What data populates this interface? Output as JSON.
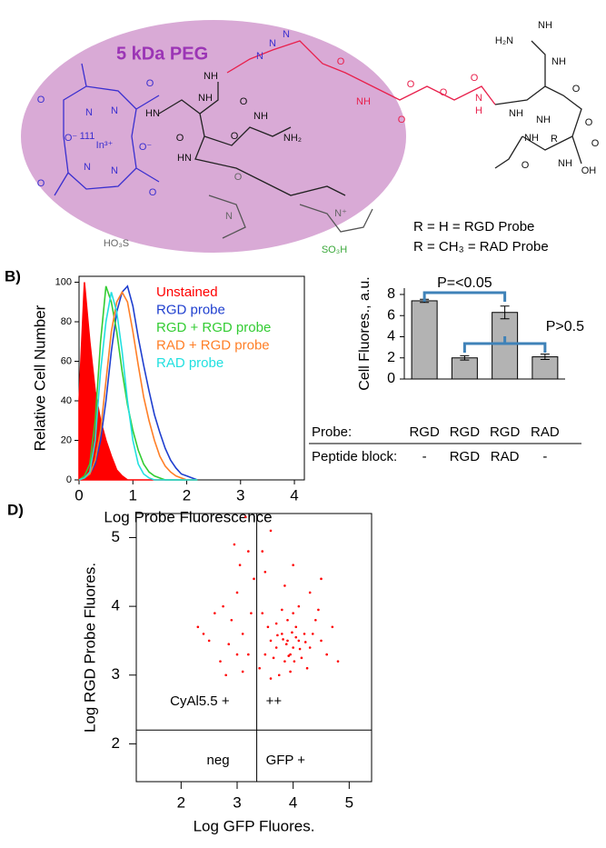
{
  "structure": {
    "peg": "5 kDa PEG",
    "labels": [
      "NH",
      "HN",
      "O",
      "NH",
      "O",
      "NH",
      "NH₂",
      "O",
      "N",
      "N",
      "N",
      "O",
      "NH",
      "O",
      "O",
      "O",
      "O",
      "N",
      "H",
      "H₂N",
      "NH",
      "NH",
      "NH",
      "O",
      "NH",
      "O",
      "R",
      "NH",
      "O",
      "NH",
      "O",
      "OH",
      "HN",
      "O",
      "N",
      "N⁺",
      "HO₃S",
      "SO₃H",
      "In³⁺",
      "111",
      "N",
      "N",
      "N",
      "N",
      "O⁻",
      "O⁻",
      "O",
      "O",
      "O",
      "O"
    ],
    "captions": [
      "R = H = RGD Probe",
      "R = CH₃ = RAD Probe"
    ]
  },
  "chart_data": [
    {
      "type": "line",
      "panel": "B)",
      "xlabel": "Log Probe Fluorescence",
      "ylabel": "Relative Cell Number",
      "x": [
        0,
        0.1,
        0.2,
        0.3,
        0.4,
        0.5,
        0.6,
        0.7,
        0.8,
        0.9,
        1.0,
        1.1,
        1.2,
        1.3,
        1.4,
        1.5,
        1.6,
        1.7,
        1.8,
        1.9,
        2.0,
        2.1,
        2.2
      ],
      "series": [
        {
          "name": "Unstained",
          "color": "#ff0000",
          "fill": true,
          "values": [
            40,
            100,
            70,
            45,
            30,
            20,
            12,
            5,
            2,
            0,
            0,
            0,
            0,
            0,
            0,
            0,
            0,
            0,
            0,
            0,
            0,
            0,
            0
          ]
        },
        {
          "name": "RGD probe",
          "color": "#1f3fcf",
          "values": [
            0,
            1,
            3,
            8,
            20,
            40,
            65,
            85,
            95,
            98,
            88,
            72,
            58,
            45,
            33,
            24,
            16,
            10,
            6,
            3,
            2,
            1,
            0
          ]
        },
        {
          "name": "RGD + RGD probe",
          "color": "#33cc33",
          "values": [
            0,
            2,
            8,
            30,
            70,
            98,
            90,
            75,
            55,
            38,
            25,
            15,
            8,
            4,
            2,
            1,
            0,
            0,
            0,
            0,
            0,
            0,
            0
          ]
        },
        {
          "name": "RAD + RGD probe",
          "color": "#ff7f27",
          "values": [
            0,
            1,
            3,
            10,
            25,
            50,
            75,
            90,
            95,
            90,
            75,
            58,
            42,
            30,
            20,
            12,
            7,
            4,
            2,
            1,
            0,
            0,
            0
          ]
        },
        {
          "name": "RAD probe",
          "color": "#22e0e0",
          "values": [
            0,
            1,
            4,
            20,
            55,
            80,
            95,
            85,
            65,
            40,
            20,
            8,
            3,
            1,
            0,
            0,
            0,
            0,
            0,
            0,
            0,
            0,
            0
          ]
        }
      ],
      "xlim": [
        0,
        4.05
      ],
      "xticks": [
        0,
        1,
        2,
        3,
        4
      ],
      "ylim": [
        0,
        103
      ],
      "yticks": [
        0,
        20,
        40,
        60,
        80,
        100
      ],
      "legend": "top-right"
    },
    {
      "type": "bar",
      "ylabel": "Cell Fluores., a.u.",
      "categories": [
        null,
        null,
        null,
        null
      ],
      "values": [
        7.4,
        2.0,
        6.3,
        2.1
      ],
      "errors": [
        0.15,
        0.2,
        0.6,
        0.25
      ],
      "color": "#b3b3b3",
      "ylim": [
        0,
        8.6
      ],
      "yticks": [
        0,
        2,
        4,
        6,
        8
      ],
      "annotations": [
        "P=<0.05",
        "P>0.5"
      ],
      "table": {
        "rows": [
          [
            "Probe:",
            "RGD",
            "RGD",
            "RGD",
            "RAD"
          ],
          [
            "Peptide block:",
            "-",
            "RGD",
            "RAD",
            "-"
          ]
        ]
      }
    },
    {
      "type": "scatter",
      "panel": "D)",
      "xlabel": "Log GFP Fluores.",
      "ylabel": "Log RGD Probe  Fluores.",
      "color": "#ff0000",
      "x": [
        3.9,
        4.0,
        3.8,
        4.1,
        3.95,
        4.2,
        3.7,
        3.85,
        4.05,
        4.3,
        3.6,
        4.0,
        3.75,
        4.15,
        4.4,
        3.9,
        3.65,
        4.25,
        3.55,
        4.5,
        3.8,
        4.1,
        3.7,
        4.35,
        3.95,
        4.6,
        3.5,
        4.05,
        3.88,
        4.12,
        3.98,
        3.82,
        4.22,
        3.92,
        4.02,
        3.72,
        4.45,
        3.6,
        4.7,
        3.45,
        4.3,
        3.85,
        3.4,
        4.8,
        3.5,
        4.0,
        3.6,
        3.45,
        4.5,
        2.5,
        2.7,
        2.9,
        3.0,
        3.1,
        2.6,
        3.2,
        2.8,
        3.05,
        3.15,
        2.95,
        3.25,
        2.4,
        3.3,
        2.85,
        3.1,
        3.2,
        2.3,
        3.0,
        2.75
      ],
      "y": [
        3.5,
        3.4,
        3.6,
        3.5,
        3.3,
        3.6,
        3.4,
        3.2,
        3.7,
        3.4,
        3.5,
        3.9,
        3.0,
        3.25,
        3.8,
        3.8,
        3.25,
        3.1,
        3.7,
        3.5,
        3.95,
        4.0,
        3.75,
        3.6,
        3.05,
        3.3,
        3.3,
        3.55,
        3.45,
        3.38,
        3.62,
        3.52,
        3.48,
        3.28,
        3.2,
        3.58,
        3.95,
        2.95,
        3.7,
        3.9,
        4.2,
        4.3,
        3.1,
        3.2,
        4.5,
        4.6,
        5.1,
        4.8,
        4.4,
        3.5,
        3.2,
        3.8,
        4.2,
        3.6,
        3.9,
        3.3,
        3.0,
        4.6,
        5.3,
        4.9,
        3.9,
        3.6,
        4.4,
        3.45,
        3.05,
        4.8,
        3.7,
        3.3,
        4.0
      ],
      "xlim": [
        1.2,
        5.4
      ],
      "xticks": [
        2,
        3,
        4,
        5
      ],
      "ylim": [
        1.45,
        5.35
      ],
      "yticks": [
        2,
        3,
        4,
        5
      ],
      "gates": {
        "x": 3.35,
        "y": 2.2
      },
      "quadrant_labels": [
        "CyAl5.5  +",
        "++",
        "neg",
        "GFP  +"
      ]
    }
  ]
}
